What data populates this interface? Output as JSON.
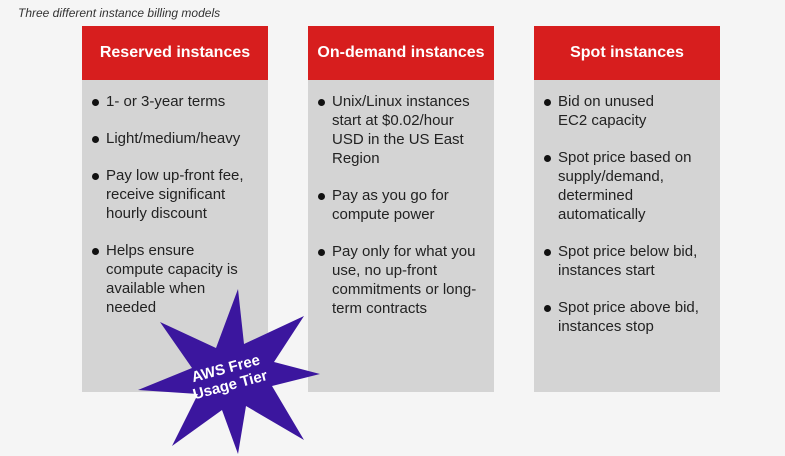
{
  "caption": "Three different instance billing models",
  "colors": {
    "header": "#d71e1e",
    "card": "#d4d4d4",
    "star": "#3b169e"
  },
  "columns": [
    {
      "title": "Reserved instances",
      "items": [
        "1- or 3-year terms",
        "Light/medium/heavy",
        "Pay low up-front fee, receive significant hourly discount",
        "Helps ensure compute capacity is available when needed"
      ]
    },
    {
      "title": "On-demand instances",
      "items": [
        "Unix/Linux instances start at $0.02/hour USD in the US East Region",
        "Pay as you go for compute power",
        "Pay only for what you use, no up-front commitments or long-term contracts"
      ]
    },
    {
      "title": "Spot instances",
      "items": [
        "Bid on unused EC2 capacity",
        "Spot price based on supply/demand, determined automatically",
        "Spot price below bid, instances start",
        "Spot price above bid, instances stop"
      ]
    }
  ],
  "starburst": {
    "line1": "AWS Free",
    "line2": "Usage Tier",
    "icon": "starburst-badge"
  }
}
